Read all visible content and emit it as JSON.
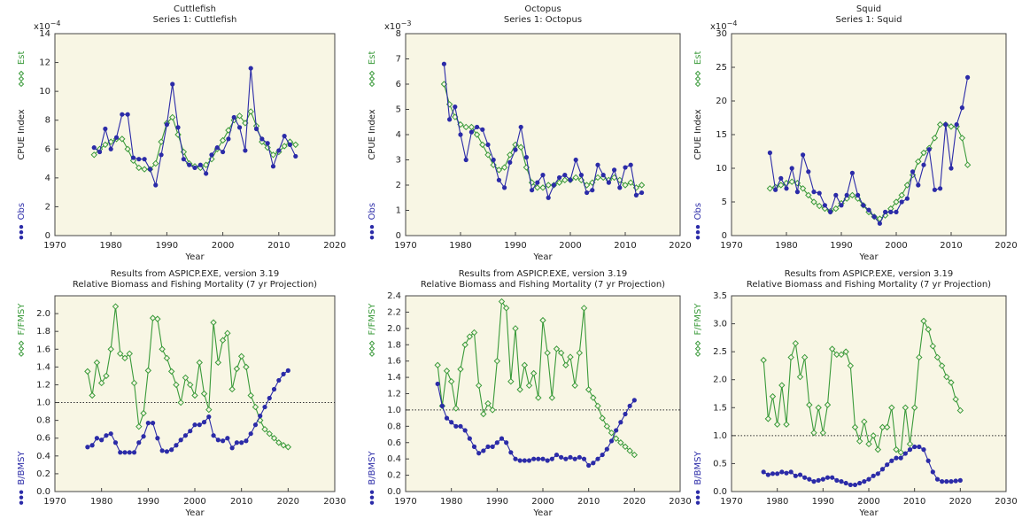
{
  "chart_data": [
    {
      "type": "line",
      "title": "Cuttlefish",
      "subtitle": "Series 1: Cuttlefish",
      "xlabel": "Year",
      "ylabel": "CPUE Index",
      "y_multiplier": {
        "base": "x10",
        "exponent": "−4"
      },
      "xlim": [
        1970,
        2020
      ],
      "xticks": [
        1970,
        1980,
        1990,
        2000,
        2010,
        2020
      ],
      "ylim": [
        0,
        14
      ],
      "yticks": [
        0,
        2,
        4,
        6,
        8,
        10,
        12,
        14
      ],
      "x": [
        1977,
        1978,
        1979,
        1980,
        1981,
        1982,
        1983,
        1984,
        1985,
        1986,
        1987,
        1988,
        1989,
        1990,
        1991,
        1992,
        1993,
        1994,
        1995,
        1996,
        1997,
        1998,
        1999,
        2000,
        2001,
        2002,
        2003,
        2004,
        2005,
        2006,
        2007,
        2008,
        2009,
        2010,
        2011,
        2012,
        2013
      ],
      "series": [
        {
          "name": "Est",
          "color": "#3a9a3a",
          "marker": "diamond",
          "values": [
            5.6,
            6.0,
            6.3,
            6.5,
            6.7,
            6.7,
            6.0,
            5.2,
            4.7,
            4.6,
            4.6,
            5.0,
            6.5,
            7.8,
            8.2,
            7.0,
            5.8,
            5.0,
            4.8,
            4.7,
            4.9,
            5.3,
            6.0,
            6.6,
            7.3,
            8.0,
            8.3,
            7.8,
            8.6,
            7.6,
            6.5,
            6.1,
            5.6,
            5.8,
            6.2,
            6.5,
            6.3
          ]
        },
        {
          "name": "Obs",
          "color": "#2b2ba8",
          "marker": "circle",
          "values": [
            6.1,
            5.8,
            7.4,
            6.0,
            6.8,
            8.4,
            8.4,
            5.4,
            5.3,
            5.3,
            4.6,
            3.5,
            5.6,
            7.7,
            10.5,
            7.5,
            5.3,
            4.9,
            4.7,
            4.9,
            4.3,
            5.6,
            6.1,
            5.8,
            6.7,
            8.2,
            7.5,
            5.9,
            11.6,
            7.4,
            6.7,
            6.4,
            4.8,
            5.9,
            6.9,
            6.3,
            5.5
          ]
        }
      ]
    },
    {
      "type": "line",
      "title": "Octopus",
      "subtitle": "Series 1: Octopus",
      "xlabel": "Year",
      "ylabel": "CPUE Index",
      "y_multiplier": {
        "base": "x10",
        "exponent": "−3"
      },
      "xlim": [
        1970,
        2020
      ],
      "xticks": [
        1970,
        1980,
        1990,
        2000,
        2010,
        2020
      ],
      "ylim": [
        0,
        8
      ],
      "yticks": [
        0,
        1,
        2,
        3,
        4,
        5,
        6,
        7,
        8
      ],
      "x": [
        1977,
        1978,
        1979,
        1980,
        1981,
        1982,
        1983,
        1984,
        1985,
        1986,
        1987,
        1988,
        1989,
        1990,
        1991,
        1992,
        1993,
        1994,
        1995,
        1996,
        1997,
        1998,
        1999,
        2000,
        2001,
        2002,
        2003,
        2004,
        2005,
        2006,
        2007,
        2008,
        2009,
        2010,
        2011,
        2012,
        2013
      ],
      "series": [
        {
          "name": "Est",
          "color": "#3a9a3a",
          "marker": "diamond",
          "values": [
            6.0,
            5.2,
            4.7,
            4.4,
            4.3,
            4.3,
            4.0,
            3.6,
            3.2,
            2.8,
            2.6,
            2.7,
            3.2,
            3.6,
            3.5,
            2.7,
            2.1,
            1.9,
            1.9,
            2.0,
            2.0,
            2.1,
            2.2,
            2.2,
            2.3,
            2.2,
            2.0,
            2.1,
            2.3,
            2.3,
            2.2,
            2.3,
            2.2,
            2.0,
            2.1,
            1.9,
            2.0
          ]
        },
        {
          "name": "Obs",
          "color": "#2b2ba8",
          "marker": "circle",
          "values": [
            6.8,
            4.6,
            5.1,
            4.0,
            3.0,
            4.1,
            4.3,
            4.2,
            3.6,
            3.0,
            2.2,
            1.9,
            2.9,
            3.4,
            4.3,
            3.1,
            1.8,
            2.1,
            2.4,
            1.5,
            2.0,
            2.3,
            2.4,
            2.2,
            3.0,
            2.4,
            1.7,
            1.8,
            2.8,
            2.4,
            2.1,
            2.6,
            1.9,
            2.7,
            2.8,
            1.6,
            1.7
          ]
        }
      ]
    },
    {
      "type": "line",
      "title": "Squid",
      "subtitle": "Series 1: Squid",
      "xlabel": "Year",
      "ylabel": "CPUE Index",
      "y_multiplier": {
        "base": "x10",
        "exponent": "−4"
      },
      "xlim": [
        1970,
        2020
      ],
      "xticks": [
        1970,
        1980,
        1990,
        2000,
        2010,
        2020
      ],
      "ylim": [
        0,
        30
      ],
      "yticks": [
        0,
        5,
        10,
        15,
        20,
        25,
        30
      ],
      "x": [
        1977,
        1978,
        1979,
        1980,
        1981,
        1982,
        1983,
        1984,
        1985,
        1986,
        1987,
        1988,
        1989,
        1990,
        1991,
        1992,
        1993,
        1994,
        1995,
        1996,
        1997,
        1998,
        1999,
        2000,
        2001,
        2002,
        2003,
        2004,
        2005,
        2006,
        2007,
        2008,
        2009,
        2010,
        2011,
        2012,
        2013
      ],
      "series": [
        {
          "name": "Est",
          "color": "#3a9a3a",
          "marker": "diamond",
          "values": [
            7.0,
            7.2,
            7.5,
            7.8,
            8.0,
            7.8,
            7.0,
            6.0,
            5.0,
            4.4,
            4.0,
            3.6,
            4.0,
            4.8,
            5.5,
            6.0,
            5.5,
            4.5,
            3.5,
            2.8,
            2.5,
            3.0,
            4.0,
            5.0,
            6.0,
            7.5,
            9.0,
            11.0,
            12.3,
            13.0,
            14.5,
            16.5,
            16.5,
            16.2,
            16.2,
            14.5,
            10.5
          ]
        },
        {
          "name": "Obs",
          "color": "#2b2ba8",
          "marker": "circle",
          "values": [
            12.3,
            6.8,
            8.5,
            7.0,
            10.0,
            6.5,
            12.0,
            9.5,
            6.5,
            6.3,
            4.5,
            3.5,
            6.0,
            4.5,
            6.0,
            9.3,
            6.0,
            4.5,
            3.8,
            2.8,
            1.8,
            3.5,
            3.5,
            3.5,
            5.0,
            5.5,
            9.5,
            7.5,
            10.5,
            12.8,
            6.8,
            7.0,
            16.5,
            10.0,
            16.5,
            19.0,
            23.5
          ]
        }
      ]
    },
    {
      "type": "line",
      "title": "Results from ASPICP.EXE, version 3.19",
      "subtitle": "Relative Biomass and Fishing Mortality (7 yr Projection)",
      "xlabel": "Year",
      "xlim": [
        1970,
        2030
      ],
      "xticks": [
        1970,
        1980,
        1990,
        2000,
        2010,
        2020,
        2030
      ],
      "ylim": [
        0,
        2.2
      ],
      "yticks": [
        {
          "value": 0,
          "label": "0.0"
        },
        0.2,
        0.4,
        0.6,
        0.8,
        {
          "value": 1,
          "label": "1.0"
        },
        1.2,
        1.4,
        1.6,
        1.8,
        {
          "value": 2,
          "label": "2.0"
        }
      ],
      "refline": 1,
      "x": [
        1977,
        1978,
        1979,
        1980,
        1981,
        1982,
        1983,
        1984,
        1985,
        1986,
        1987,
        1988,
        1989,
        1990,
        1991,
        1992,
        1993,
        1994,
        1995,
        1996,
        1997,
        1998,
        1999,
        2000,
        2001,
        2002,
        2003,
        2004,
        2005,
        2006,
        2007,
        2008,
        2009,
        2010,
        2011,
        2012,
        2013,
        2014,
        2015,
        2016,
        2017,
        2018,
        2019,
        2020
      ],
      "series": [
        {
          "name": "F/FMSY",
          "color": "#3a9a3a",
          "marker": "diamond",
          "values": [
            1.35,
            1.08,
            1.45,
            1.22,
            1.3,
            1.6,
            2.08,
            1.55,
            1.5,
            1.55,
            1.22,
            0.73,
            0.88,
            1.36,
            1.95,
            1.94,
            1.6,
            1.5,
            1.35,
            1.2,
            1.0,
            1.28,
            1.2,
            1.08,
            1.45,
            1.1,
            0.92,
            1.9,
            1.45,
            1.7,
            1.78,
            1.15,
            1.38,
            1.52,
            1.4,
            1.08,
            0.95,
            0.8,
            0.7,
            0.65,
            0.6,
            0.55,
            0.52,
            0.5
          ]
        },
        {
          "name": "B/BMSY",
          "color": "#2b2ba8",
          "marker": "circle",
          "values": [
            0.5,
            0.52,
            0.6,
            0.58,
            0.63,
            0.65,
            0.55,
            0.44,
            0.44,
            0.44,
            0.44,
            0.55,
            0.62,
            0.77,
            0.77,
            0.6,
            0.46,
            0.45,
            0.47,
            0.52,
            0.58,
            0.63,
            0.68,
            0.75,
            0.75,
            0.78,
            0.84,
            0.63,
            0.58,
            0.57,
            0.6,
            0.49,
            0.55,
            0.55,
            0.57,
            0.65,
            0.75,
            0.85,
            0.95,
            1.05,
            1.15,
            1.25,
            1.32,
            1.36
          ]
        }
      ]
    },
    {
      "type": "line",
      "title": "Results from ASPICP.EXE, version 3.19",
      "subtitle": "Relative Biomass and Fishing Mortality (7 yr Projection)",
      "xlabel": "Year",
      "xlim": [
        1970,
        2030
      ],
      "xticks": [
        1970,
        1980,
        1990,
        2000,
        2010,
        2020,
        2030
      ],
      "ylim": [
        0,
        2.4
      ],
      "yticks": [
        {
          "value": 0,
          "label": "0.0"
        },
        0.2,
        0.4,
        0.6,
        0.8,
        {
          "value": 1,
          "label": "1.0"
        },
        1.2,
        1.4,
        1.6,
        1.8,
        {
          "value": 2,
          "label": "2.0"
        },
        2.2,
        2.4
      ],
      "refline": 1,
      "x": [
        1977,
        1978,
        1979,
        1980,
        1981,
        1982,
        1983,
        1984,
        1985,
        1986,
        1987,
        1988,
        1989,
        1990,
        1991,
        1992,
        1993,
        1994,
        1995,
        1996,
        1997,
        1998,
        1999,
        2000,
        2001,
        2002,
        2003,
        2004,
        2005,
        2006,
        2007,
        2008,
        2009,
        2010,
        2011,
        2012,
        2013,
        2014,
        2015,
        2016,
        2017,
        2018,
        2019,
        2020
      ],
      "series": [
        {
          "name": "F/FMSY",
          "color": "#3a9a3a",
          "marker": "diamond",
          "values": [
            1.55,
            1.05,
            1.48,
            1.35,
            1.02,
            1.5,
            1.8,
            1.9,
            1.95,
            1.3,
            0.95,
            1.08,
            1.0,
            1.6,
            2.33,
            2.25,
            1.35,
            2.0,
            1.25,
            1.55,
            1.3,
            1.45,
            1.15,
            2.1,
            1.7,
            1.15,
            1.75,
            1.7,
            1.55,
            1.65,
            1.3,
            1.7,
            2.25,
            1.25,
            1.15,
            1.05,
            0.9,
            0.8,
            0.72,
            0.65,
            0.6,
            0.55,
            0.5,
            0.45
          ]
        },
        {
          "name": "B/BMSY",
          "color": "#2b2ba8",
          "marker": "circle",
          "values": [
            1.32,
            1.05,
            0.9,
            0.85,
            0.8,
            0.8,
            0.75,
            0.65,
            0.55,
            0.47,
            0.5,
            0.55,
            0.55,
            0.6,
            0.65,
            0.6,
            0.48,
            0.4,
            0.38,
            0.38,
            0.38,
            0.4,
            0.4,
            0.4,
            0.38,
            0.4,
            0.45,
            0.42,
            0.4,
            0.42,
            0.4,
            0.42,
            0.4,
            0.32,
            0.35,
            0.4,
            0.45,
            0.52,
            0.62,
            0.75,
            0.85,
            0.95,
            1.05,
            1.12
          ]
        }
      ]
    },
    {
      "type": "line",
      "title": "Results from ASPICP.EXE, version 3.19",
      "subtitle": "Relative Biomass and Fishing Mortality (7 yr Projection)",
      "xlabel": "Year",
      "xlim": [
        1970,
        2030
      ],
      "xticks": [
        1970,
        1980,
        1990,
        2000,
        2010,
        2020,
        2030
      ],
      "ylim": [
        0,
        3.5
      ],
      "yticks": [
        {
          "value": 0,
          "label": "0.0"
        },
        0.5,
        {
          "value": 1,
          "label": "1.0"
        },
        1.5,
        {
          "value": 2,
          "label": "2.0"
        },
        2.5,
        {
          "value": 3,
          "label": "3.0"
        },
        3.5
      ],
      "refline": 1,
      "x": [
        1977,
        1978,
        1979,
        1980,
        1981,
        1982,
        1983,
        1984,
        1985,
        1986,
        1987,
        1988,
        1989,
        1990,
        1991,
        1992,
        1993,
        1994,
        1995,
        1996,
        1997,
        1998,
        1999,
        2000,
        2001,
        2002,
        2003,
        2004,
        2005,
        2006,
        2007,
        2008,
        2009,
        2010,
        2011,
        2012,
        2013,
        2014,
        2015,
        2016,
        2017,
        2018,
        2019,
        2020
      ],
      "series": [
        {
          "name": "F/FMSY",
          "color": "#3a9a3a",
          "marker": "diamond",
          "values": [
            2.35,
            1.3,
            1.7,
            1.2,
            1.9,
            1.2,
            2.4,
            2.65,
            2.05,
            2.4,
            1.55,
            1.05,
            1.5,
            1.05,
            1.55,
            2.55,
            2.45,
            2.45,
            2.5,
            2.25,
            1.15,
            0.9,
            1.25,
            0.85,
            1.0,
            0.75,
            1.15,
            1.15,
            1.5,
            0.75,
            0.7,
            1.5,
            0.85,
            1.5,
            2.4,
            3.05,
            2.9,
            2.6,
            2.4,
            2.25,
            2.05,
            1.95,
            1.65,
            1.45
          ]
        },
        {
          "name": "B/BMSY",
          "color": "#2b2ba8",
          "marker": "circle",
          "values": [
            0.35,
            0.3,
            0.32,
            0.32,
            0.35,
            0.33,
            0.35,
            0.28,
            0.3,
            0.25,
            0.22,
            0.18,
            0.2,
            0.22,
            0.25,
            0.25,
            0.2,
            0.18,
            0.15,
            0.12,
            0.12,
            0.15,
            0.18,
            0.22,
            0.28,
            0.32,
            0.4,
            0.48,
            0.55,
            0.6,
            0.6,
            0.68,
            0.75,
            0.8,
            0.8,
            0.75,
            0.55,
            0.35,
            0.22,
            0.18,
            0.18,
            0.18,
            0.19,
            0.2
          ]
        }
      ]
    }
  ]
}
